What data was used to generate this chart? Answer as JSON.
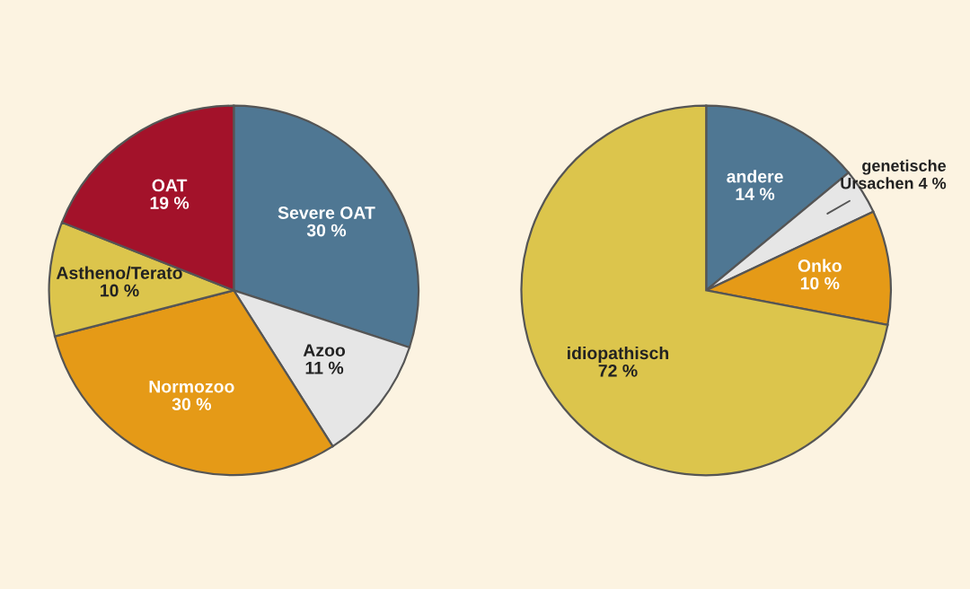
{
  "chart_data": [
    {
      "type": "pie",
      "categories": [
        "Severe OAT",
        "Azoo",
        "Normozoo",
        "Astheno/Terato",
        "OAT"
      ],
      "values": [
        30,
        11,
        30,
        10,
        19
      ],
      "value_labels": [
        "30 %",
        "11 %",
        "30 %",
        "10 %",
        "19 %"
      ],
      "colors": [
        "#4f7793",
        "#e6e6e6",
        "#e59a17",
        "#dcc54c",
        "#a3122a"
      ],
      "legend": false
    },
    {
      "type": "pie",
      "categories": [
        "andere",
        "genetische Ursachen",
        "Onko",
        "idiopathisch"
      ],
      "values": [
        14,
        4,
        10,
        72
      ],
      "value_labels": [
        "14 %",
        "4 %",
        "10 %",
        "72 %"
      ],
      "colors": [
        "#4f7793",
        "#e6e6e6",
        "#e59a17",
        "#dcc54c"
      ],
      "legend": false
    }
  ]
}
